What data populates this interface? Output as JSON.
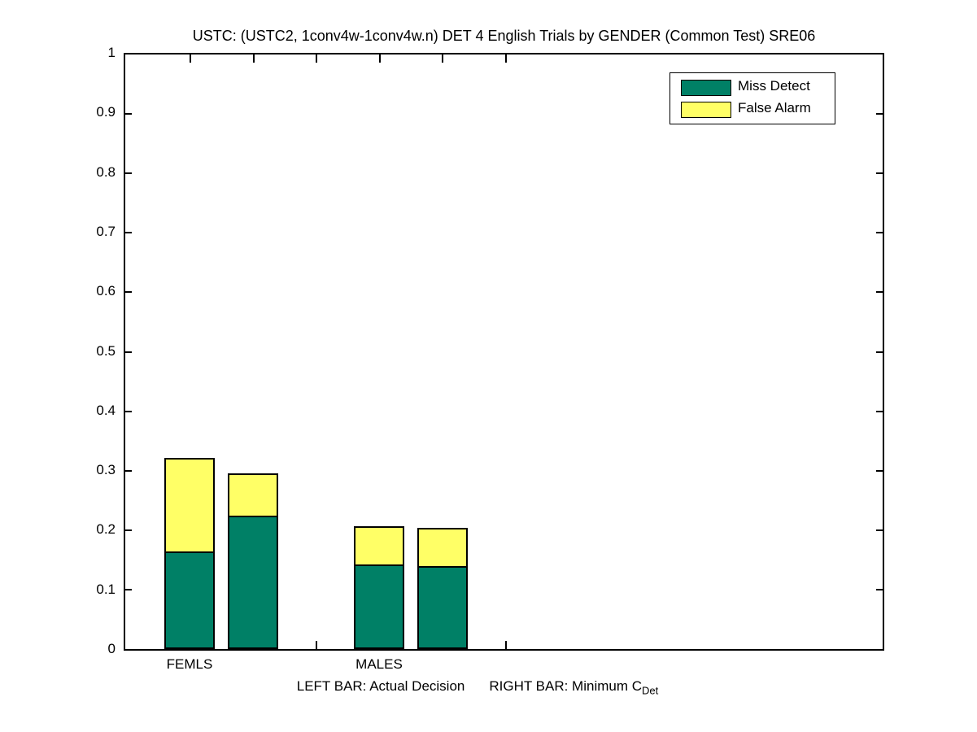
{
  "title": "USTC: (USTC2, 1conv4w-1conv4w.n) DET 4 English Trials by GENDER (Common Test) SRE06",
  "legend": {
    "position": "top-right",
    "items": [
      {
        "label": "Miss Detect",
        "color": "#008066"
      },
      {
        "label": "False Alarm",
        "color": "#ffff66"
      }
    ]
  },
  "x_axis": {
    "labels": [
      "FEMLS",
      "MALES"
    ]
  },
  "y_axis": {
    "tick_labels": [
      "0",
      "0.1",
      "0.2",
      "0.3",
      "0.4",
      "0.5",
      "0.6",
      "0.7",
      "0.8",
      "0.9",
      "1"
    ],
    "tick_values": [
      0,
      0.1,
      0.2,
      0.3,
      0.4,
      0.5,
      0.6,
      0.7,
      0.8,
      0.9,
      1
    ]
  },
  "footnote": {
    "left_text": "LEFT BAR: Actual Decision",
    "right_text": "RIGHT BAR: Minimum C",
    "subscript": "Det"
  },
  "chart_data": {
    "type": "bar",
    "stacked": true,
    "title": "USTC: (USTC2, 1conv4w-1conv4w.n) DET 4 English Trials by GENDER (Common Test) SRE06",
    "grid": false,
    "ylim": [
      0,
      1
    ],
    "ytick_step": 0.1,
    "legend_position": "top-right",
    "categories": [
      "FEMLS",
      "MALES"
    ],
    "bar_meaning": {
      "left_bar": "Actual Decision",
      "right_bar": "Minimum C_Det"
    },
    "series_names": [
      "Miss Detect",
      "False Alarm"
    ],
    "series_colors": [
      "#008066",
      "#ffff66"
    ],
    "bars": [
      {
        "group": "FEMLS",
        "variant": "Actual Decision",
        "miss_detect": 0.161,
        "false_alarm": 0.16,
        "total": 0.321
      },
      {
        "group": "FEMLS",
        "variant": "Minimum C_Det",
        "miss_detect": 0.221,
        "false_alarm": 0.074,
        "total": 0.295
      },
      {
        "group": "MALES",
        "variant": "Actual Decision",
        "miss_detect": 0.139,
        "false_alarm": 0.067,
        "total": 0.206
      },
      {
        "group": "MALES",
        "variant": "Minimum C_Det",
        "miss_detect": 0.137,
        "false_alarm": 0.067,
        "total": 0.204
      }
    ]
  }
}
